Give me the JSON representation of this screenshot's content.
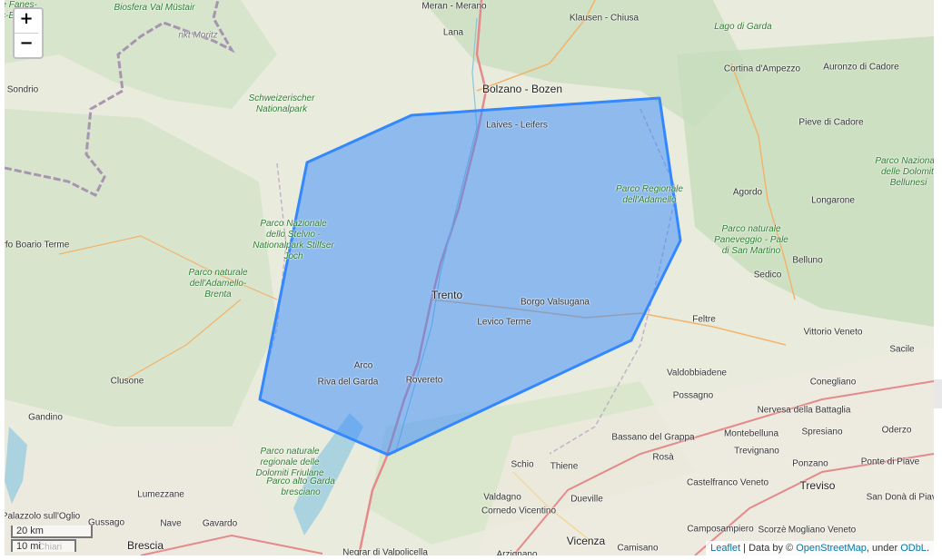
{
  "map": {
    "zoom_in": "+",
    "zoom_out": "−",
    "scale_km": "20 km",
    "scale_mi": "10 mi",
    "attribution": {
      "leaflet": "Leaflet",
      "sep": " | Data by © ",
      "osm": "OpenStreetMap",
      "under": ", under ",
      "odbl": "ODbL",
      "end": "."
    },
    "polygon_color": "#3388ff",
    "labels": [
      {
        "text": "Meran - Merano",
        "kind": "city"
      },
      {
        "text": "Klausen - Chiusa",
        "kind": "city"
      },
      {
        "text": "Lana",
        "kind": "city"
      },
      {
        "text": "Bolzano - Bozen",
        "kind": "big"
      },
      {
        "text": "Laives - Leifers",
        "kind": "city"
      },
      {
        "text": "Cortina d'Ampezzo",
        "kind": "city"
      },
      {
        "text": "Auronzo di Cadore",
        "kind": "city"
      },
      {
        "text": "Pieve di Cadore",
        "kind": "city"
      },
      {
        "text": "Agordo",
        "kind": "city"
      },
      {
        "text": "Longarone",
        "kind": "city"
      },
      {
        "text": "Belluno",
        "kind": "city"
      },
      {
        "text": "Sedico",
        "kind": "city"
      },
      {
        "text": "Feltre",
        "kind": "city"
      },
      {
        "text": "Vittorio Veneto",
        "kind": "city"
      },
      {
        "text": "Sacile",
        "kind": "city"
      },
      {
        "text": "Trento",
        "kind": "big"
      },
      {
        "text": "Borgo Valsugana",
        "kind": "city"
      },
      {
        "text": "Levico Terme",
        "kind": "city"
      },
      {
        "text": "Arco",
        "kind": "city"
      },
      {
        "text": "Riva del Garda",
        "kind": "city"
      },
      {
        "text": "Rovereto",
        "kind": "city"
      },
      {
        "text": "Valdobbiadene",
        "kind": "city"
      },
      {
        "text": "Conegliano",
        "kind": "city"
      },
      {
        "text": "Possagno",
        "kind": "city"
      },
      {
        "text": "Nervesa della Battaglia",
        "kind": "city"
      },
      {
        "text": "Bassano del Grappa",
        "kind": "city"
      },
      {
        "text": "Montebelluna",
        "kind": "city"
      },
      {
        "text": "Spresiano",
        "kind": "city"
      },
      {
        "text": "Oderzo",
        "kind": "city"
      },
      {
        "text": "Trevignano",
        "kind": "city"
      },
      {
        "text": "Ponzano",
        "kind": "city"
      },
      {
        "text": "Ponte di Piave",
        "kind": "city"
      },
      {
        "text": "Rosà",
        "kind": "city"
      },
      {
        "text": "Schio",
        "kind": "city"
      },
      {
        "text": "Thiene",
        "kind": "city"
      },
      {
        "text": "Castelfranco Veneto",
        "kind": "city"
      },
      {
        "text": "Treviso",
        "kind": "big"
      },
      {
        "text": "San Donà di Piave",
        "kind": "city"
      },
      {
        "text": "Valdagno",
        "kind": "city"
      },
      {
        "text": "Dueville",
        "kind": "city"
      },
      {
        "text": "Cornedo Vicentino",
        "kind": "city"
      },
      {
        "text": "Camposampiero",
        "kind": "city"
      },
      {
        "text": "Scorzè",
        "kind": "city"
      },
      {
        "text": "Mogliano Veneto",
        "kind": "city"
      },
      {
        "text": "Vicenza",
        "kind": "big"
      },
      {
        "text": "Camisano",
        "kind": "city"
      },
      {
        "text": "Arzignano",
        "kind": "city"
      },
      {
        "text": "Negrar di Valpolicella",
        "kind": "city"
      },
      {
        "text": "Brescia",
        "kind": "big"
      },
      {
        "text": "Nave",
        "kind": "city"
      },
      {
        "text": "Gavardo",
        "kind": "city"
      },
      {
        "text": "Gussago",
        "kind": "city"
      },
      {
        "text": "Lumezzane",
        "kind": "city"
      },
      {
        "text": "Palazzolo sull'Oglio",
        "kind": "city"
      },
      {
        "text": "Chiari",
        "kind": "city"
      },
      {
        "text": "Gandino",
        "kind": "city"
      },
      {
        "text": "Clusone",
        "kind": "city"
      },
      {
        "text": "Darfo Boario Terme",
        "kind": "city"
      },
      {
        "text": "Sondrio",
        "kind": "city"
      },
      {
        "text": "nkt Moritz",
        "kind": "foreign"
      },
      {
        "text": "Biosfera Val Müstair",
        "kind": "park"
      },
      {
        "text": "Schweizerischer Nationalpark",
        "kind": "park"
      },
      {
        "text": "Parco Nazionale dello Stelvio - Nationalpark Stilfser Joch",
        "kind": "park"
      },
      {
        "text": "Parco naturale dell'Adamello-Brenta",
        "kind": "park"
      },
      {
        "text": "Parco Regionale dell'Adamello",
        "kind": "park"
      },
      {
        "text": "Parco naturale Paneveggio - Pale di San Martino",
        "kind": "park"
      },
      {
        "text": "Parco Nazionale delle Dolomiti Bellunesi",
        "kind": "park"
      },
      {
        "text": "Parco naturale regionale delle Dolomiti Friulane",
        "kind": "park"
      },
      {
        "text": "Parco alto Garda bresciano",
        "kind": "park"
      },
      {
        "text": "Lago di Garda",
        "kind": "park"
      },
      {
        "text": "Fanes-Sennes-Prags - Parco Naturale Fanes-Sennes-Braies",
        "kind": "park"
      }
    ]
  }
}
